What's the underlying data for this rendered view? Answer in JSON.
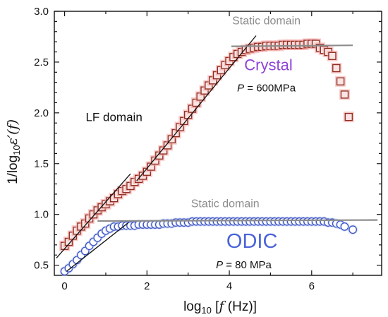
{
  "chart_data": {
    "type": "scatter",
    "xlabel": "log10 [f (Hz)]",
    "ylabel": "1/log10ε′(f)",
    "xlim": [
      -0.25,
      7.7
    ],
    "ylim": [
      0.4,
      3.0
    ],
    "xticks": [
      "0",
      "2",
      "4",
      "6"
    ],
    "yticks": [
      "0.5",
      "1.0",
      "1.5",
      "2.0",
      "2.5",
      "3.0"
    ],
    "grid": false,
    "series": [
      {
        "name": "Crystal",
        "marker": "square",
        "color": "#8b2b1d",
        "glow": "#f3a7a7",
        "points": [
          [
            0.0,
            0.69
          ],
          [
            0.1,
            0.73
          ],
          [
            0.2,
            0.79
          ],
          [
            0.3,
            0.84
          ],
          [
            0.4,
            0.88
          ],
          [
            0.5,
            0.91
          ],
          [
            0.6,
            0.96
          ],
          [
            0.7,
            1.0
          ],
          [
            0.8,
            1.04
          ],
          [
            0.9,
            1.07
          ],
          [
            1.0,
            1.1
          ],
          [
            1.1,
            1.13
          ],
          [
            1.2,
            1.16
          ],
          [
            1.3,
            1.2
          ],
          [
            1.4,
            1.23
          ],
          [
            1.5,
            1.25
          ],
          [
            1.6,
            1.28
          ],
          [
            1.7,
            1.32
          ],
          [
            1.8,
            1.35
          ],
          [
            1.9,
            1.38
          ],
          [
            2.0,
            1.42
          ],
          [
            2.1,
            1.47
          ],
          [
            2.2,
            1.53
          ],
          [
            2.3,
            1.58
          ],
          [
            2.4,
            1.63
          ],
          [
            2.5,
            1.68
          ],
          [
            2.6,
            1.74
          ],
          [
            2.7,
            1.8
          ],
          [
            2.8,
            1.86
          ],
          [
            2.9,
            1.92
          ],
          [
            3.0,
            1.98
          ],
          [
            3.1,
            2.04
          ],
          [
            3.2,
            2.1
          ],
          [
            3.3,
            2.16
          ],
          [
            3.4,
            2.22
          ],
          [
            3.5,
            2.27
          ],
          [
            3.6,
            2.32
          ],
          [
            3.7,
            2.37
          ],
          [
            3.8,
            2.42
          ],
          [
            3.9,
            2.47
          ],
          [
            4.0,
            2.51
          ],
          [
            4.1,
            2.55
          ],
          [
            4.2,
            2.58
          ],
          [
            4.3,
            2.6
          ],
          [
            4.4,
            2.62
          ],
          [
            4.5,
            2.63
          ],
          [
            4.6,
            2.64
          ],
          [
            4.7,
            2.65
          ],
          [
            4.8,
            2.65
          ],
          [
            4.9,
            2.66
          ],
          [
            5.0,
            2.66
          ],
          [
            5.1,
            2.66
          ],
          [
            5.2,
            2.66
          ],
          [
            5.3,
            2.67
          ],
          [
            5.4,
            2.67
          ],
          [
            5.5,
            2.67
          ],
          [
            5.6,
            2.67
          ],
          [
            5.7,
            2.67
          ],
          [
            5.8,
            2.67
          ],
          [
            5.9,
            2.68
          ],
          [
            6.0,
            2.68
          ],
          [
            6.1,
            2.68
          ],
          [
            6.2,
            2.64
          ],
          [
            6.3,
            2.62
          ],
          [
            6.4,
            2.6
          ],
          [
            6.5,
            2.56
          ],
          [
            6.6,
            2.44
          ],
          [
            6.7,
            2.31
          ],
          [
            6.8,
            2.18
          ],
          [
            6.9,
            1.96
          ]
        ]
      },
      {
        "name": "ODIC",
        "marker": "circle",
        "color": "#3a53c4",
        "glow": "#b7c3ee",
        "points": [
          [
            0.0,
            0.44
          ],
          [
            0.1,
            0.47
          ],
          [
            0.2,
            0.51
          ],
          [
            0.3,
            0.55
          ],
          [
            0.4,
            0.6
          ],
          [
            0.5,
            0.64
          ],
          [
            0.6,
            0.69
          ],
          [
            0.7,
            0.73
          ],
          [
            0.8,
            0.77
          ],
          [
            0.9,
            0.81
          ],
          [
            1.0,
            0.84
          ],
          [
            1.1,
            0.86
          ],
          [
            1.2,
            0.88
          ],
          [
            1.3,
            0.88
          ],
          [
            1.4,
            0.89
          ],
          [
            1.5,
            0.89
          ],
          [
            1.6,
            0.89
          ],
          [
            1.7,
            0.89
          ],
          [
            1.8,
            0.9
          ],
          [
            1.9,
            0.9
          ],
          [
            2.0,
            0.9
          ],
          [
            2.1,
            0.9
          ],
          [
            2.2,
            0.9
          ],
          [
            2.3,
            0.9
          ],
          [
            2.4,
            0.91
          ],
          [
            2.5,
            0.91
          ],
          [
            2.6,
            0.91
          ],
          [
            2.7,
            0.92
          ],
          [
            2.8,
            0.92
          ],
          [
            2.9,
            0.92
          ],
          [
            3.0,
            0.92
          ],
          [
            3.1,
            0.93
          ],
          [
            3.2,
            0.93
          ],
          [
            3.3,
            0.93
          ],
          [
            3.4,
            0.93
          ],
          [
            3.5,
            0.93
          ],
          [
            3.6,
            0.93
          ],
          [
            3.7,
            0.93
          ],
          [
            3.8,
            0.93
          ],
          [
            3.9,
            0.93
          ],
          [
            4.0,
            0.93
          ],
          [
            4.1,
            0.93
          ],
          [
            4.2,
            0.93
          ],
          [
            4.3,
            0.93
          ],
          [
            4.4,
            0.93
          ],
          [
            4.5,
            0.93
          ],
          [
            4.6,
            0.93
          ],
          [
            4.7,
            0.93
          ],
          [
            4.8,
            0.93
          ],
          [
            4.9,
            0.93
          ],
          [
            5.0,
            0.93
          ],
          [
            5.1,
            0.93
          ],
          [
            5.2,
            0.93
          ],
          [
            5.3,
            0.93
          ],
          [
            5.4,
            0.93
          ],
          [
            5.5,
            0.93
          ],
          [
            5.6,
            0.93
          ],
          [
            5.7,
            0.93
          ],
          [
            5.8,
            0.93
          ],
          [
            5.9,
            0.93
          ],
          [
            6.0,
            0.93
          ],
          [
            6.1,
            0.93
          ],
          [
            6.2,
            0.93
          ],
          [
            6.3,
            0.93
          ],
          [
            6.4,
            0.92
          ],
          [
            6.5,
            0.92
          ],
          [
            6.6,
            0.91
          ],
          [
            6.7,
            0.9
          ],
          [
            6.8,
            0.88
          ],
          [
            7.0,
            0.85
          ]
        ]
      }
    ],
    "fit_lines": [
      {
        "name": "crystal-lf-fit",
        "color": "#111111",
        "from": [
          -0.2,
          0.57
        ],
        "to": [
          1.6,
          1.4
        ]
      },
      {
        "name": "crystal-mid-fit",
        "color": "#111111",
        "from": [
          1.75,
          1.33
        ],
        "to": [
          4.65,
          2.76
        ]
      },
      {
        "name": "odic-lf-fit",
        "color": "#111111",
        "from": [
          0.05,
          0.44
        ],
        "to": [
          1.55,
          0.92
        ]
      },
      {
        "name": "crystal-static-fit",
        "color": "#8c8c8c",
        "from": [
          4.05,
          2.655
        ],
        "to": [
          7.0,
          2.665
        ]
      },
      {
        "name": "odic-static-fit",
        "color": "#8c8c8c",
        "from": [
          0.8,
          0.935
        ],
        "to": [
          7.6,
          0.945
        ]
      }
    ],
    "annotations": {
      "static_crystal": {
        "text": "Static domain",
        "x": 4.9,
        "y": 2.87,
        "color": "#8c8c8c"
      },
      "crystal_label": {
        "text": "Crystal",
        "x": 4.95,
        "y": 2.42,
        "color": "#8e44d6"
      },
      "crystal_pressure_var": "P",
      "crystal_pressure_val": " = 600MPa",
      "crystal_pressure_pos": {
        "x": 4.9,
        "y": 2.21
      },
      "lf_label": {
        "text": "LF domain",
        "x": 1.2,
        "y": 1.92,
        "color": "#111111"
      },
      "static_odic": {
        "text": "Static domain",
        "x": 3.9,
        "y": 1.07,
        "color": "#8c8c8c"
      },
      "odic_label": {
        "text": "ODIC",
        "x": 4.55,
        "y": 0.67,
        "color": "#4a63d8"
      },
      "odic_pressure_var": "P",
      "odic_pressure_val": " = 80 MPa",
      "odic_pressure_pos": {
        "x": 4.35,
        "y": 0.47
      }
    }
  }
}
